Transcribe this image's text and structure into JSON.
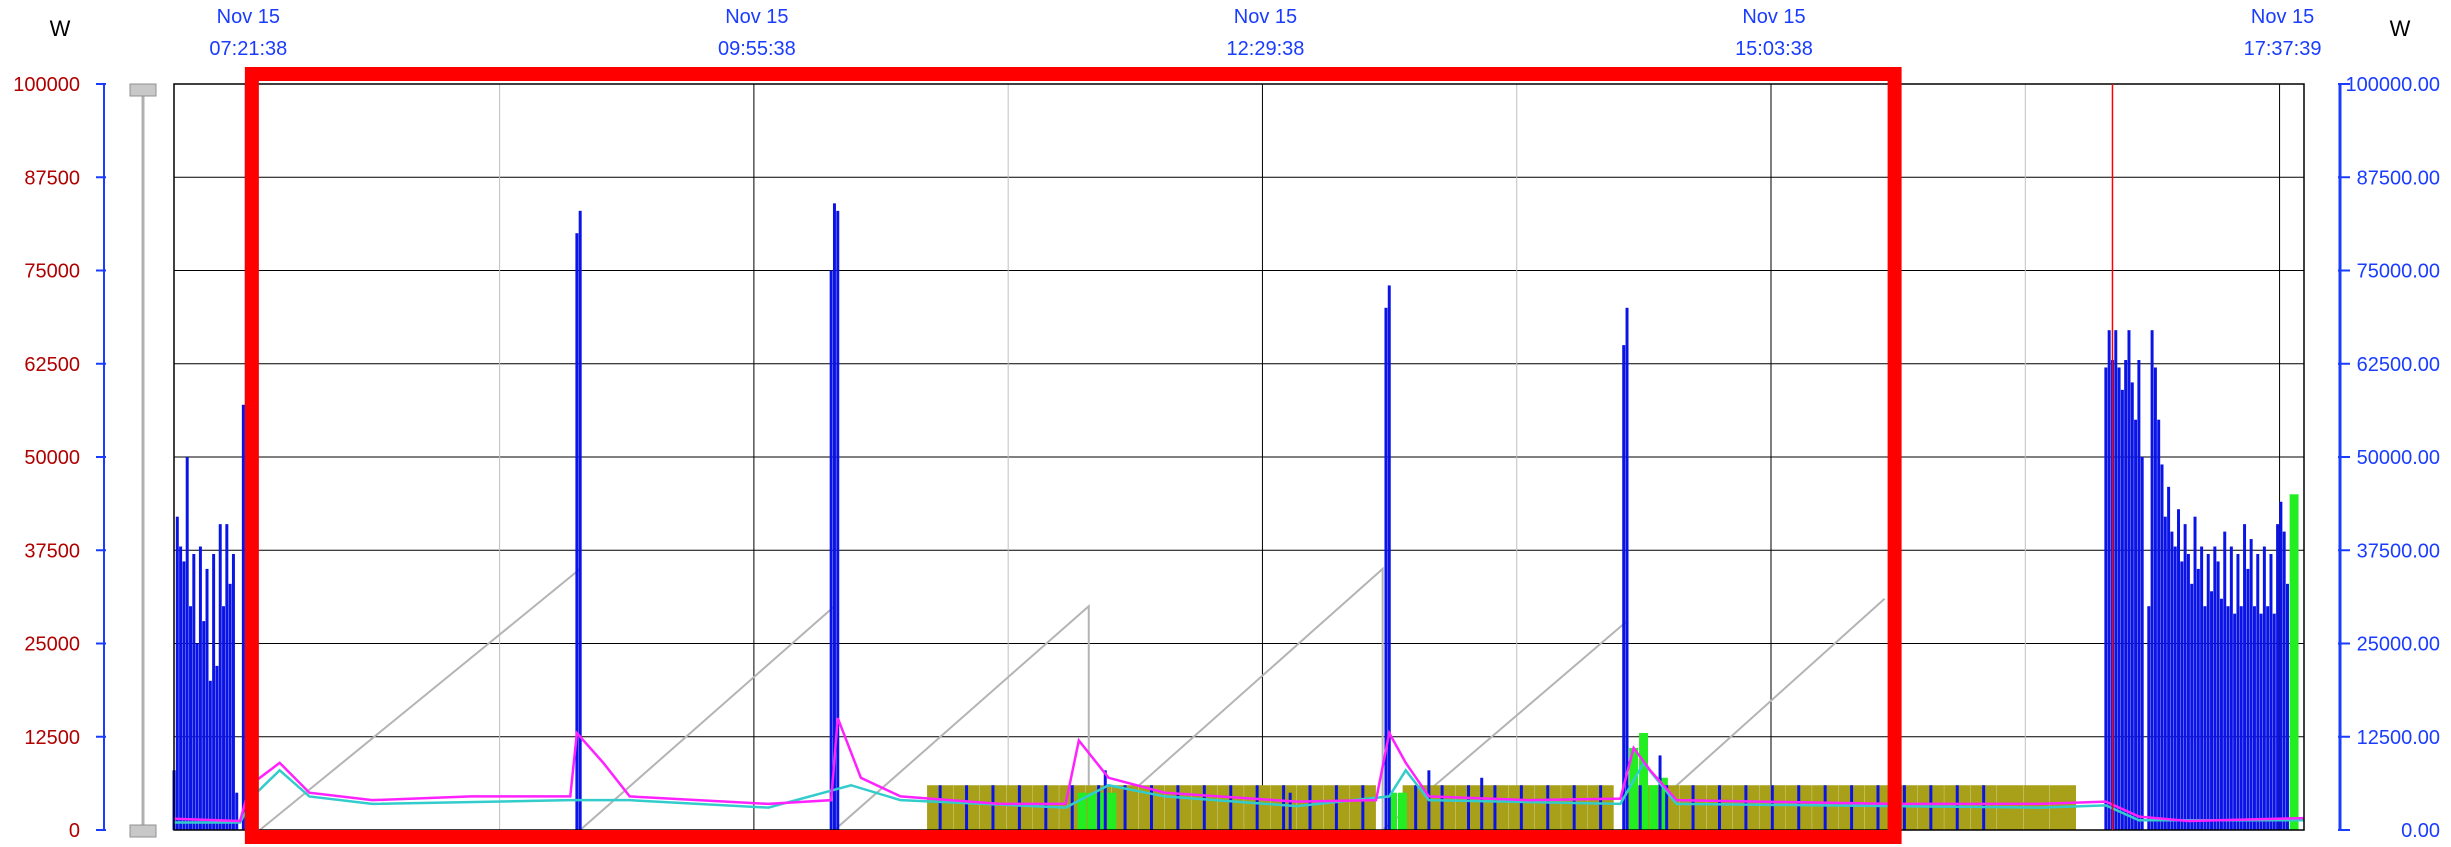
{
  "chart_data": {
    "type": "bar",
    "ylabel_left": "W",
    "ylabel_right": "W",
    "ylim": [
      0,
      100000
    ],
    "xlim_minutes": [
      420,
      1065
    ],
    "left_ticks": [
      "0",
      "12500",
      "25000",
      "37500",
      "50000",
      "62500",
      "75000",
      "87500",
      "100000"
    ],
    "right_ticks": [
      "0.00",
      "12500.00",
      "25000.00",
      "37500.00",
      "50000.00",
      "62500.00",
      "75000.00",
      "87500.00",
      "100000.00"
    ],
    "time_ticks": [
      {
        "date": "Nov 15",
        "time": "07:21:38",
        "minute": 441.6
      },
      {
        "date": "Nov 15",
        "time": "09:55:38",
        "minute": 595.6
      },
      {
        "date": "Nov 15",
        "time": "12:29:38",
        "minute": 749.6
      },
      {
        "date": "Nov 15",
        "time": "15:03:38",
        "minute": 903.6
      },
      {
        "date": "Nov 15",
        "time": "17:37:39",
        "minute": 1057.6
      }
    ],
    "colors": {
      "blue_bars": "#0a14e6",
      "olive_bars": "#a8a018",
      "green_bars": "#22ee22",
      "magenta_line": "#ff22ff",
      "cyan_line": "#33cccc",
      "sawtooth": "#b4b4b4",
      "highlight_box": "#ff0000",
      "cursor_line": "#ff0000"
    },
    "series": [
      {
        "kind": "blue_bars",
        "points": [
          [
            420,
            8000
          ],
          [
            421,
            42000
          ],
          [
            422,
            38000
          ],
          [
            423,
            36000
          ],
          [
            424,
            50000
          ],
          [
            425,
            30000
          ],
          [
            426,
            37000
          ],
          [
            427,
            25000
          ],
          [
            428,
            38000
          ],
          [
            429,
            28000
          ],
          [
            430,
            35000
          ],
          [
            431,
            20000
          ],
          [
            432,
            37000
          ],
          [
            433,
            22000
          ],
          [
            434,
            41000
          ],
          [
            435,
            30000
          ],
          [
            436,
            41000
          ],
          [
            437,
            33000
          ],
          [
            438,
            37000
          ],
          [
            439,
            5000
          ],
          [
            441,
            57000
          ],
          [
            442,
            62000
          ],
          [
            443,
            88000
          ],
          [
            444,
            91000
          ],
          [
            542,
            80000
          ],
          [
            543,
            83000
          ],
          [
            619,
            75000
          ],
          [
            620,
            84000
          ],
          [
            621,
            83000
          ],
          [
            787,
            70000
          ],
          [
            788,
            73000
          ],
          [
            859,
            65000
          ],
          [
            860,
            70000
          ],
          [
            652,
            6000
          ],
          [
            660,
            6000
          ],
          [
            668,
            6000
          ],
          [
            676,
            6000
          ],
          [
            684,
            6000
          ],
          [
            692,
            6000
          ],
          [
            700,
            6000
          ],
          [
            708,
            6000
          ],
          [
            716,
            6000
          ],
          [
            724,
            6000
          ],
          [
            732,
            6000
          ],
          [
            740,
            6000
          ],
          [
            748,
            6000
          ],
          [
            756,
            6000
          ],
          [
            764,
            6000
          ],
          [
            772,
            6000
          ],
          [
            780,
            6000
          ],
          [
            796,
            6000
          ],
          [
            804,
            6000
          ],
          [
            812,
            6000
          ],
          [
            820,
            6000
          ],
          [
            828,
            6000
          ],
          [
            836,
            6000
          ],
          [
            844,
            6000
          ],
          [
            852,
            6000
          ],
          [
            864,
            6000
          ],
          [
            872,
            6000
          ],
          [
            880,
            6000
          ],
          [
            888,
            6000
          ],
          [
            896,
            6000
          ],
          [
            904,
            6000
          ],
          [
            912,
            6000
          ],
          [
            920,
            6000
          ],
          [
            928,
            6000
          ],
          [
            936,
            6000
          ],
          [
            944,
            6000
          ],
          [
            952,
            6000
          ],
          [
            960,
            6000
          ],
          [
            968,
            6000
          ],
          [
            702,
            8000
          ],
          [
            758,
            5000
          ],
          [
            800,
            8000
          ],
          [
            816,
            7000
          ],
          [
            870,
            10000
          ],
          [
            1005,
            62000
          ],
          [
            1006,
            67000
          ],
          [
            1007,
            63000
          ],
          [
            1008,
            67000
          ],
          [
            1009,
            62000
          ],
          [
            1010,
            59000
          ],
          [
            1011,
            63000
          ],
          [
            1012,
            67000
          ],
          [
            1013,
            60000
          ],
          [
            1014,
            55000
          ],
          [
            1015,
            63000
          ],
          [
            1016,
            50000
          ],
          [
            1018,
            30000
          ],
          [
            1019,
            67000
          ],
          [
            1020,
            62000
          ],
          [
            1021,
            55000
          ],
          [
            1022,
            49000
          ],
          [
            1023,
            42000
          ],
          [
            1024,
            46000
          ],
          [
            1025,
            40000
          ],
          [
            1026,
            38000
          ],
          [
            1027,
            43000
          ],
          [
            1028,
            36000
          ],
          [
            1029,
            41000
          ],
          [
            1030,
            37000
          ],
          [
            1031,
            33000
          ],
          [
            1032,
            42000
          ],
          [
            1033,
            35000
          ],
          [
            1034,
            38000
          ],
          [
            1035,
            30000
          ],
          [
            1036,
            37000
          ],
          [
            1037,
            32000
          ],
          [
            1038,
            38000
          ],
          [
            1039,
            36000
          ],
          [
            1040,
            31000
          ],
          [
            1041,
            40000
          ],
          [
            1042,
            30000
          ],
          [
            1043,
            38000
          ],
          [
            1044,
            29000
          ],
          [
            1045,
            37000
          ],
          [
            1046,
            30000
          ],
          [
            1047,
            41000
          ],
          [
            1048,
            35000
          ],
          [
            1049,
            39000
          ],
          [
            1050,
            30000
          ],
          [
            1051,
            37000
          ],
          [
            1052,
            29000
          ],
          [
            1053,
            38000
          ],
          [
            1054,
            30000
          ],
          [
            1055,
            37000
          ],
          [
            1056,
            29000
          ],
          [
            1057,
            41000
          ],
          [
            1058,
            44000
          ],
          [
            1059,
            40000
          ],
          [
            1060,
            33000
          ]
        ]
      },
      {
        "kind": "olive_bars",
        "points": [
          [
            652,
            6000
          ],
          [
            660,
            6000
          ],
          [
            668,
            6000
          ],
          [
            676,
            6000
          ],
          [
            684,
            6000
          ],
          [
            692,
            6000
          ],
          [
            700,
            6000
          ],
          [
            708,
            6000
          ],
          [
            716,
            6000
          ],
          [
            724,
            6000
          ],
          [
            732,
            6000
          ],
          [
            740,
            6000
          ],
          [
            748,
            6000
          ],
          [
            756,
            6000
          ],
          [
            764,
            6000
          ],
          [
            772,
            6000
          ],
          [
            780,
            6000
          ],
          [
            796,
            6000
          ],
          [
            804,
            6000
          ],
          [
            812,
            6000
          ],
          [
            820,
            6000
          ],
          [
            828,
            6000
          ],
          [
            836,
            6000
          ],
          [
            844,
            6000
          ],
          [
            852,
            6000
          ],
          [
            864,
            6000
          ],
          [
            872,
            6000
          ],
          [
            880,
            6000
          ],
          [
            888,
            6000
          ],
          [
            896,
            6000
          ],
          [
            904,
            6000
          ],
          [
            912,
            6000
          ],
          [
            920,
            6000
          ],
          [
            928,
            6000
          ],
          [
            936,
            6000
          ],
          [
            944,
            6000
          ],
          [
            952,
            6000
          ],
          [
            960,
            6000
          ],
          [
            968,
            6000
          ],
          [
            976,
            6000
          ],
          [
            984,
            6000
          ],
          [
            992,
            6000
          ]
        ]
      },
      {
        "kind": "green_bars",
        "points": [
          [
            695,
            5000
          ],
          [
            698,
            5000
          ],
          [
            701,
            5000
          ],
          [
            704,
            5000
          ],
          [
            789,
            5000
          ],
          [
            792,
            5000
          ],
          [
            862,
            11000
          ],
          [
            865,
            13000
          ],
          [
            868,
            6000
          ],
          [
            871,
            7000
          ],
          [
            1062,
            45000
          ]
        ]
      },
      {
        "kind": "magenta_line",
        "points": [
          [
            420,
            1500
          ],
          [
            440,
            1200
          ],
          [
            443,
            6000
          ],
          [
            452,
            9000
          ],
          [
            461,
            5000
          ],
          [
            480,
            4000
          ],
          [
            510,
            4500
          ],
          [
            540,
            4500
          ],
          [
            542,
            13000
          ],
          [
            550,
            9000
          ],
          [
            558,
            4500
          ],
          [
            600,
            3500
          ],
          [
            619,
            4000
          ],
          [
            621,
            15000
          ],
          [
            628,
            7000
          ],
          [
            640,
            4500
          ],
          [
            670,
            3500
          ],
          [
            690,
            3500
          ],
          [
            694,
            12000
          ],
          [
            703,
            7000
          ],
          [
            720,
            5000
          ],
          [
            760,
            3800
          ],
          [
            784,
            4000
          ],
          [
            788,
            13000
          ],
          [
            793,
            9000
          ],
          [
            800,
            4500
          ],
          [
            830,
            4000
          ],
          [
            858,
            4200
          ],
          [
            862,
            11000
          ],
          [
            867,
            8000
          ],
          [
            875,
            4000
          ],
          [
            940,
            3500
          ],
          [
            985,
            3500
          ],
          [
            1005,
            3800
          ],
          [
            1015,
            1800
          ],
          [
            1030,
            1200
          ],
          [
            1065,
            1600
          ]
        ]
      },
      {
        "kind": "cyan_line",
        "points": [
          [
            420,
            1000
          ],
          [
            440,
            1000
          ],
          [
            445,
            5000
          ],
          [
            452,
            8000
          ],
          [
            461,
            4500
          ],
          [
            480,
            3500
          ],
          [
            540,
            4000
          ],
          [
            558,
            4000
          ],
          [
            600,
            3000
          ],
          [
            625,
            6000
          ],
          [
            640,
            4000
          ],
          [
            690,
            3000
          ],
          [
            703,
            6000
          ],
          [
            720,
            4500
          ],
          [
            760,
            3200
          ],
          [
            788,
            4500
          ],
          [
            793,
            8000
          ],
          [
            800,
            4000
          ],
          [
            858,
            3500
          ],
          [
            865,
            9000
          ],
          [
            875,
            3500
          ],
          [
            985,
            3000
          ],
          [
            1005,
            3300
          ],
          [
            1015,
            1300
          ],
          [
            1065,
            1300
          ]
        ]
      },
      {
        "kind": "sawtooth",
        "points": [
          [
            446,
            0
          ],
          [
            543,
            35000
          ],
          [
            543,
            0
          ],
          [
            620,
            30000
          ],
          [
            620,
            0
          ],
          [
            697,
            30000
          ],
          [
            697,
            0
          ],
          [
            786,
            35000
          ],
          [
            786,
            0
          ],
          [
            860,
            28000
          ],
          [
            860,
            0
          ],
          [
            938,
            31000
          ]
        ]
      }
    ],
    "cursor_minute": 1007,
    "highlight_range_minutes": [
      446,
      938
    ]
  }
}
